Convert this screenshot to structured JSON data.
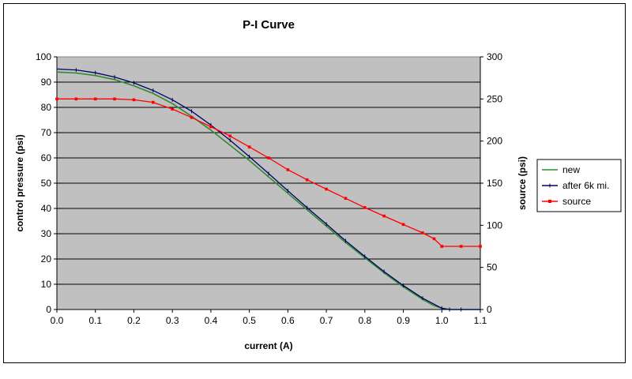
{
  "chart_data": {
    "type": "line",
    "title": "P-I Curve",
    "xlabel": "current (A)",
    "ylabel": "control pressure (psi)",
    "y2label": "source (psi)",
    "xlim": [
      0,
      1.1
    ],
    "ylim": [
      0,
      100
    ],
    "y2lim": [
      0,
      300
    ],
    "x_ticks": [
      "0.0",
      "0.1",
      "0.2",
      "0.3",
      "0.4",
      "0.5",
      "0.6",
      "0.7",
      "0.8",
      "0.9",
      "1.0",
      "1.1"
    ],
    "y_ticks": [
      "0",
      "10",
      "20",
      "30",
      "40",
      "50",
      "60",
      "70",
      "80",
      "90",
      "100"
    ],
    "y2_ticks": [
      "0",
      "50",
      "100",
      "150",
      "200",
      "250",
      "300"
    ],
    "grid": "horizontal",
    "plot_background": "#c0c0c0",
    "legend_position": "right",
    "series": [
      {
        "name": "new",
        "color": "#2e8b2e",
        "axis": "left",
        "marker": "none",
        "x": [
          0.0,
          0.05,
          0.1,
          0.15,
          0.2,
          0.25,
          0.3,
          0.35,
          0.4,
          0.45,
          0.5,
          0.55,
          0.6,
          0.65,
          0.7,
          0.75,
          0.8,
          0.85,
          0.9,
          0.95,
          0.98,
          1.0,
          1.02,
          1.05,
          1.1
        ],
        "y": [
          94,
          93.6,
          92.6,
          91,
          88.5,
          85.5,
          81.5,
          76.5,
          71,
          65,
          59,
          52.5,
          46,
          39.5,
          33,
          26.5,
          20.5,
          14.5,
          9,
          4,
          1.5,
          0.5,
          0,
          0,
          0
        ]
      },
      {
        "name": "after 6k mi.",
        "color": "#000066",
        "axis": "left",
        "marker": "small",
        "x": [
          0.0,
          0.05,
          0.1,
          0.15,
          0.2,
          0.25,
          0.3,
          0.35,
          0.4,
          0.45,
          0.5,
          0.55,
          0.6,
          0.65,
          0.7,
          0.75,
          0.8,
          0.85,
          0.9,
          0.95,
          1.0,
          1.02,
          1.05,
          1.1
        ],
        "y": [
          95.2,
          94.8,
          93.7,
          92,
          89.7,
          86.7,
          83,
          78.5,
          73,
          67,
          60.5,
          53.8,
          47,
          40.3,
          33.8,
          27.2,
          21,
          15,
          9.5,
          4.5,
          0.5,
          0,
          0,
          0
        ]
      },
      {
        "name": "source",
        "color": "#ff0000",
        "axis": "right",
        "marker": "square",
        "x": [
          0.0,
          0.05,
          0.1,
          0.15,
          0.2,
          0.25,
          0.3,
          0.35,
          0.4,
          0.45,
          0.5,
          0.55,
          0.6,
          0.65,
          0.7,
          0.75,
          0.8,
          0.85,
          0.9,
          0.95,
          0.98,
          1.0,
          1.05,
          1.1
        ],
        "y": [
          250,
          250,
          250,
          250,
          249,
          246,
          238,
          228,
          217,
          206,
          193,
          180,
          166,
          154,
          143,
          132,
          121,
          111,
          101,
          91,
          84,
          75,
          75,
          75
        ]
      }
    ]
  }
}
